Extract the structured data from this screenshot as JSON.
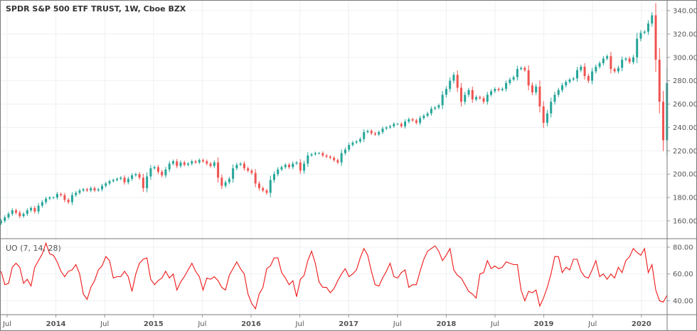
{
  "header": {
    "title": "SPDR S&P 500 ETF TRUST, 1W, Cboe BZX"
  },
  "colors": {
    "up": "#26a69a",
    "down": "#ef5350",
    "oscillator": "#f01818",
    "grid": "#eef0f3",
    "border": "#7a7a7a"
  },
  "chart_data": [
    {
      "type": "candlestick",
      "title": "SPDR S&P 500 ETF TRUST, 1W, Cboe BZX",
      "interval": "1W (closes sampled approx. every 2 weeks)",
      "ylim": [
        145,
        345
      ],
      "y_ticks": [
        "160.00",
        "180.00",
        "200.00",
        "220.00",
        "240.00",
        "260.00",
        "280.00",
        "300.00",
        "320.00",
        "340.00"
      ],
      "x_ticks": [
        "Jul",
        "2014",
        "Jul",
        "2015",
        "Jul",
        "2016",
        "Jul",
        "2017",
        "Jul",
        "2018",
        "Jul",
        "2019",
        "Jul",
        "2020"
      ],
      "x_range": [
        "2013-06",
        "2020-04"
      ],
      "grid": true,
      "closes": [
        160,
        163,
        166,
        169,
        167,
        164,
        166,
        169,
        171,
        168,
        173,
        176,
        179,
        180,
        180,
        183,
        182,
        178,
        176,
        182,
        184,
        186,
        187,
        186,
        188,
        186,
        187,
        190,
        192,
        194,
        195,
        196,
        197,
        193,
        196,
        199,
        200,
        197,
        188,
        198,
        205,
        206,
        202,
        199,
        204,
        209,
        211,
        207,
        210,
        208,
        209,
        211,
        210,
        212,
        211,
        209,
        207,
        210,
        197,
        190,
        193,
        196,
        205,
        208,
        209,
        205,
        203,
        201,
        192,
        188,
        186,
        184,
        195,
        200,
        204,
        206,
        208,
        206,
        209,
        210,
        203,
        209,
        216,
        217,
        218,
        218,
        216,
        215,
        214,
        212,
        210,
        218,
        221,
        225,
        227,
        228,
        230,
        236,
        237,
        235,
        234,
        236,
        239,
        240,
        241,
        243,
        243,
        241,
        245,
        247,
        246,
        244,
        248,
        250,
        252,
        256,
        257,
        259,
        268,
        273,
        280,
        285,
        274,
        262,
        268,
        272,
        264,
        266,
        265,
        262,
        268,
        271,
        273,
        272,
        273,
        278,
        281,
        283,
        290,
        291,
        289,
        276,
        270,
        275,
        258,
        244,
        252,
        262,
        268,
        272,
        276,
        279,
        281,
        282,
        289,
        292,
        284,
        280,
        288,
        292,
        295,
        299,
        301,
        290,
        288,
        291,
        298,
        299,
        296,
        300,
        316,
        321,
        322,
        329,
        336,
        298,
        262,
        229,
        278
      ]
    },
    {
      "type": "line",
      "title": "UO (7, 14, 28)",
      "ylim": [
        30,
        86
      ],
      "y_ticks": [
        "40.00",
        "60.00",
        "80.00"
      ],
      "values": [
        62,
        52,
        53,
        65,
        68,
        65,
        53,
        56,
        51,
        65,
        70,
        75,
        83,
        75,
        74,
        69,
        62,
        58,
        62,
        63,
        67,
        60,
        45,
        41,
        50,
        55,
        63,
        66,
        73,
        70,
        57,
        58,
        58,
        62,
        58,
        47,
        60,
        68,
        71,
        72,
        56,
        52,
        55,
        57,
        62,
        57,
        60,
        48,
        54,
        58,
        63,
        68,
        62,
        58,
        48,
        57,
        56,
        58,
        55,
        50,
        48,
        59,
        64,
        69,
        64,
        60,
        45,
        38,
        34,
        45,
        50,
        64,
        66,
        72,
        72,
        61,
        57,
        52,
        55,
        43,
        56,
        59,
        70,
        77,
        68,
        54,
        50,
        50,
        46,
        49,
        55,
        60,
        64,
        58,
        60,
        63,
        72,
        79,
        74,
        62,
        52,
        51,
        57,
        62,
        68,
        58,
        57,
        61,
        63,
        50,
        52,
        52,
        62,
        71,
        77,
        79,
        81,
        77,
        70,
        74,
        79,
        63,
        59,
        57,
        52,
        47,
        45,
        42,
        60,
        61,
        70,
        64,
        66,
        64,
        65,
        69,
        68,
        67,
        67,
        48,
        40,
        47,
        46,
        48,
        36,
        42,
        50,
        60,
        73,
        73,
        61,
        65,
        63,
        71,
        71,
        62,
        58,
        57,
        63,
        70,
        58,
        60,
        56,
        60,
        57,
        65,
        61,
        70,
        73,
        79,
        76,
        74,
        79,
        61,
        67,
        48,
        40,
        39,
        44
      ]
    }
  ]
}
